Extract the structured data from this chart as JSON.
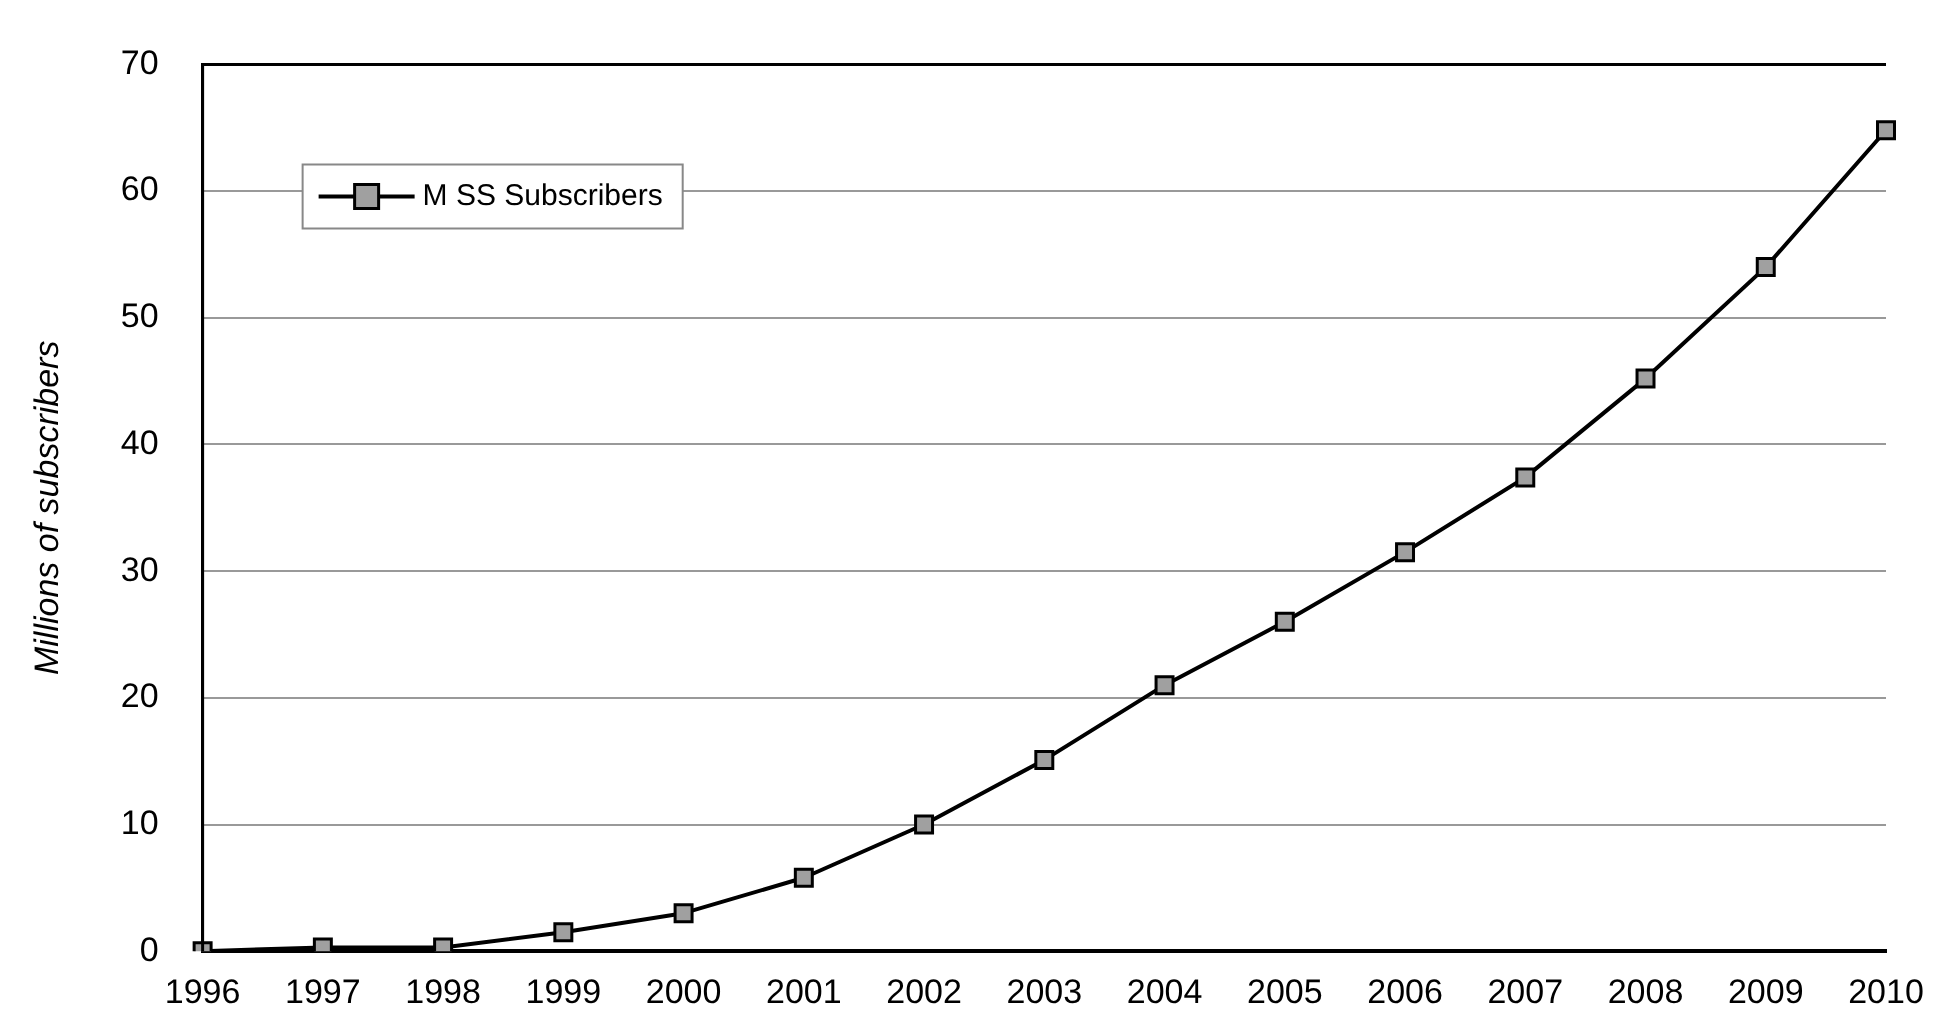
{
  "chart_data": {
    "type": "line",
    "ylabel": "Millions of subscribers",
    "categories": [
      "1996",
      "1997",
      "1998",
      "1999",
      "2000",
      "2001",
      "2002",
      "2003",
      "2004",
      "2005",
      "2006",
      "2007",
      "2008",
      "2009",
      "2010"
    ],
    "series": [
      {
        "name": "M SS Subscribers",
        "color": "#000000",
        "values": [
          0,
          0.3,
          0.3,
          1.5,
          3,
          5.8,
          10,
          15.1,
          21,
          26,
          31.5,
          37.4,
          45.2,
          54,
          64.8
        ]
      }
    ],
    "ylim": [
      0,
      70
    ],
    "yticks": [
      0,
      10,
      20,
      30,
      40,
      50,
      60,
      70
    ],
    "grid": "y",
    "legend": "top left",
    "marker": "square",
    "line_style": "solid"
  }
}
